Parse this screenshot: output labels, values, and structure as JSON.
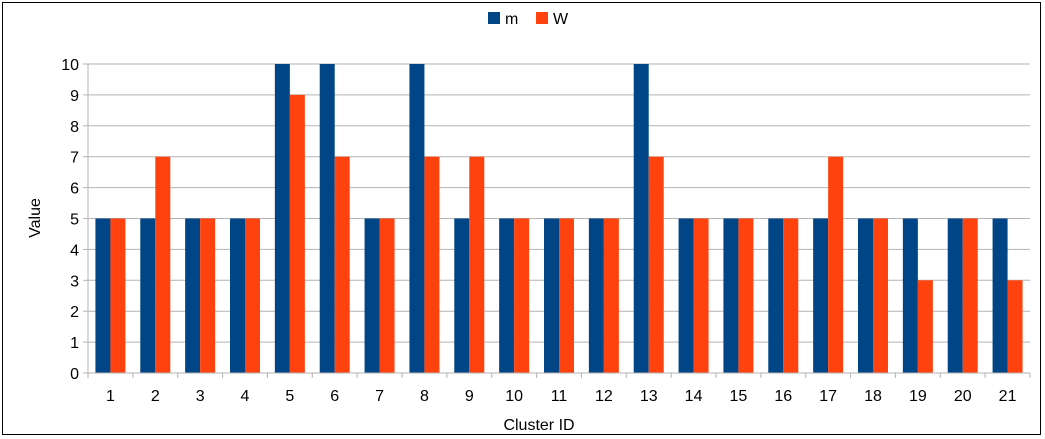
{
  "chart_data": {
    "type": "bar",
    "categories": [
      "1",
      "2",
      "3",
      "4",
      "5",
      "6",
      "7",
      "8",
      "9",
      "10",
      "11",
      "12",
      "13",
      "14",
      "15",
      "16",
      "17",
      "18",
      "19",
      "20",
      "21"
    ],
    "series": [
      {
        "name": "m",
        "color": "#004586",
        "values": [
          5,
          5,
          5,
          5,
          10,
          10,
          5,
          10,
          5,
          5,
          5,
          5,
          10,
          5,
          5,
          5,
          5,
          5,
          5,
          5,
          5
        ]
      },
      {
        "name": "W",
        "color": "#ff420e",
        "values": [
          5,
          7,
          5,
          5,
          9,
          7,
          5,
          7,
          7,
          5,
          5,
          5,
          7,
          5,
          5,
          5,
          7,
          5,
          3,
          5,
          3
        ]
      }
    ],
    "xlabel": "Cluster ID",
    "ylabel": "Value",
    "ylim": [
      0,
      10
    ],
    "yticks": [
      0,
      1,
      2,
      3,
      4,
      5,
      6,
      7,
      8,
      9,
      10
    ],
    "grid": true,
    "legend_position": "top-center"
  }
}
